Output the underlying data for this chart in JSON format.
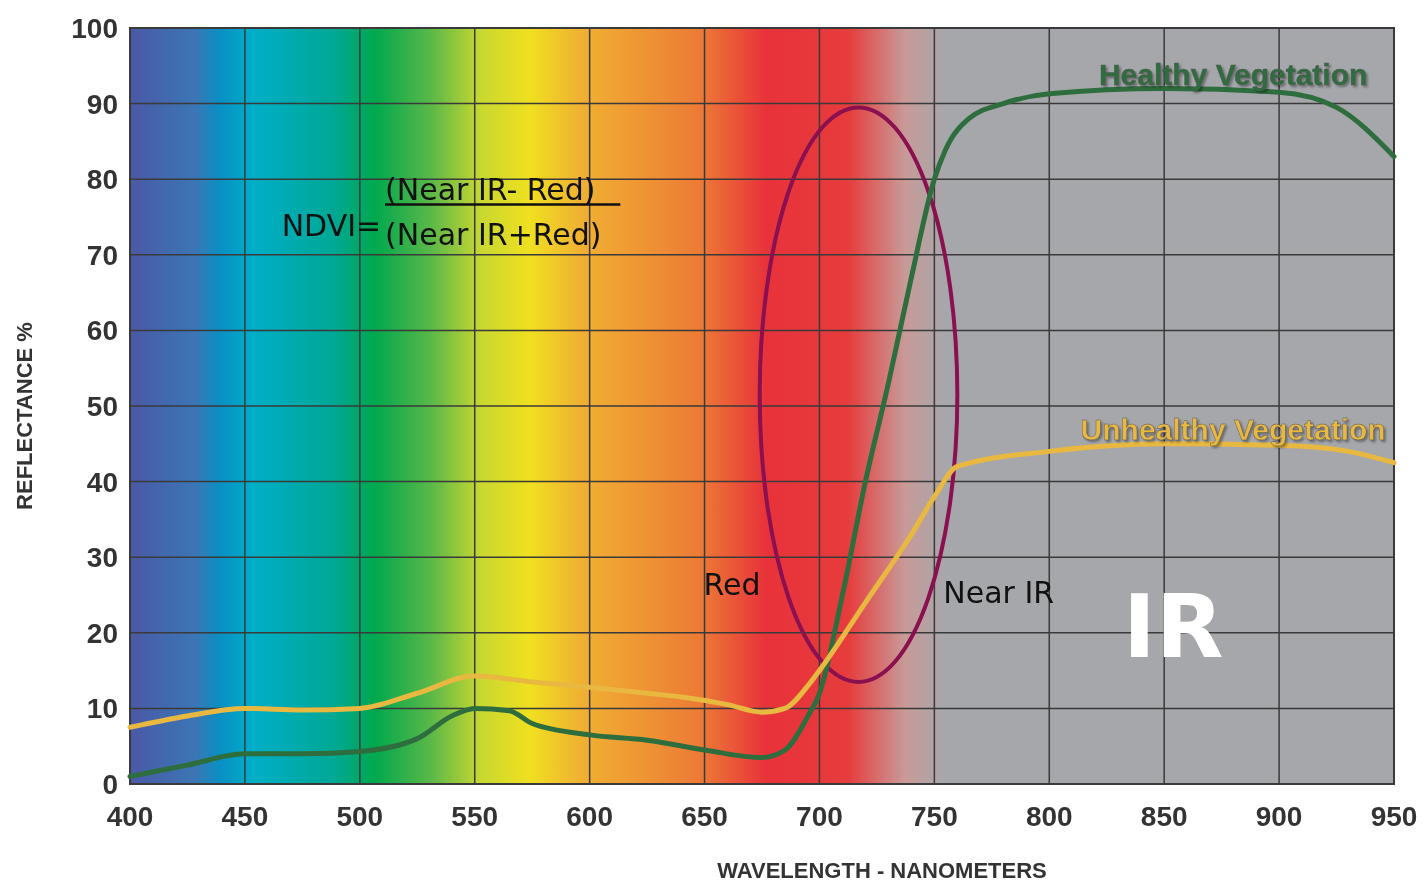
{
  "chart_data": {
    "type": "line",
    "xlabel": "WAVELENGTH - NANOMETERS",
    "ylabel": "REFLECTANCE %",
    "xlim": [
      400,
      950
    ],
    "xticks": [
      400,
      450,
      500,
      550,
      600,
      650,
      700,
      750,
      800,
      850,
      900,
      950
    ],
    "ylim": [
      0,
      100
    ],
    "yticks": [
      0,
      10,
      20,
      30,
      40,
      50,
      60,
      70,
      80,
      90,
      100
    ],
    "grid": true,
    "legend": false,
    "series": [
      {
        "name": "Healthy Vegetation",
        "color": "#2e6e3e",
        "x": [
          400,
          425,
          450,
          475,
          500,
          525,
          540,
          550,
          565,
          575,
          600,
          625,
          650,
          675,
          685,
          695,
          700,
          710,
          720,
          730,
          740,
          750,
          755,
          765,
          780,
          800,
          850,
          900,
          925,
          950
        ],
        "values": [
          1,
          2.5,
          4,
          4,
          4.3,
          6,
          9,
          10,
          9.7,
          8,
          6.5,
          5.8,
          4.5,
          3.5,
          4.5,
          9,
          12,
          25,
          40,
          53,
          67,
          80,
          84,
          88,
          90,
          91.3,
          92,
          91.5,
          89.5,
          83
        ]
      },
      {
        "name": "Unhealthy Vegetation",
        "color": "#e8b840",
        "x": [
          400,
          425,
          450,
          475,
          500,
          525,
          550,
          575,
          600,
          625,
          640,
          660,
          675,
          685,
          695,
          700,
          720,
          740,
          750,
          760,
          800,
          850,
          900,
          930,
          950
        ],
        "values": [
          7.5,
          9,
          10,
          9.8,
          10,
          12,
          14.3,
          13.5,
          12.8,
          12,
          11.5,
          10.5,
          9.5,
          10,
          13,
          15,
          24,
          33,
          38,
          42,
          44,
          45,
          44.8,
          44,
          42.5
        ]
      }
    ],
    "annotations": [
      "NDVI=",
      "(Near IR- Red)",
      "(Near IR+Red)",
      "Red",
      "Near IR",
      "IR"
    ]
  }
}
